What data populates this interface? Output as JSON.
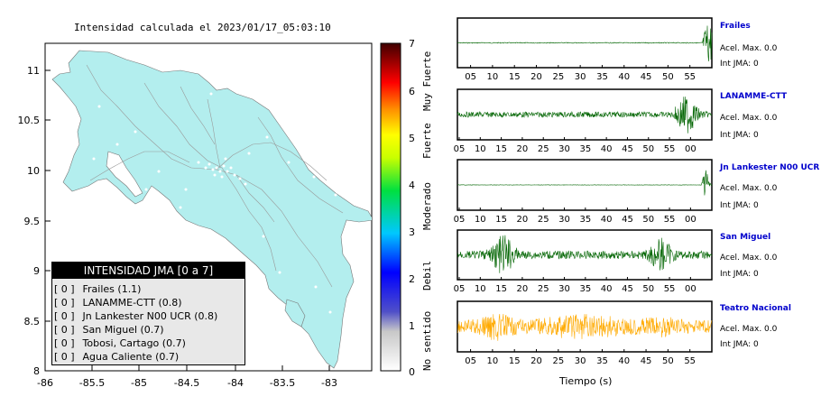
{
  "map": {
    "title": "Intensidad calculada el 2023/01/17_05:03:10",
    "x_ticks": [
      "-86",
      "-85.5",
      "-85",
      "-84.5",
      "-84",
      "-83.5",
      "-83"
    ],
    "y_ticks": [
      "11",
      "10.5",
      "10",
      "9.5",
      "9",
      "8.5",
      "8"
    ],
    "land_color": "#b3eeee",
    "colorbar": {
      "ticks": [
        "0",
        "1",
        "2",
        "3",
        "4",
        "5",
        "6",
        "7"
      ],
      "labels": [
        "No sentido",
        "Debil",
        "Moderado",
        "Fuerte",
        "Muy Fuerte"
      ]
    },
    "legend": {
      "title": "INTENSIDAD JMA [0 a 7]",
      "items": [
        {
          "bracket": "[ 0 ]",
          "name": "Frailes (1.1)"
        },
        {
          "bracket": "[ 0 ]",
          "name": "LANAMME-CTT (0.8)"
        },
        {
          "bracket": "[ 0 ]",
          "name": "Jn Lankester N00 UCR (0.8)"
        },
        {
          "bracket": "[ 0 ]",
          "name": "San Miguel (0.7)"
        },
        {
          "bracket": "[ 0 ]",
          "name": "Tobosi, Cartago (0.7)"
        },
        {
          "bracket": "[ 0 ]",
          "name": "Agua Caliente (0.7)"
        }
      ]
    }
  },
  "chart_data": {
    "type": "line",
    "x_label": "Tiempo (s)",
    "stations": [
      {
        "name": "Frailes",
        "acel": "Acel. Max. 0.0",
        "jma": "Int JMA: 0",
        "ticks": [
          "05",
          "10",
          "15",
          "20",
          "25",
          "30",
          "35",
          "40",
          "45",
          "50",
          "55"
        ],
        "color": "#006400"
      },
      {
        "name": "LANAMME-CTT",
        "acel": "Acel. Max. 0.0",
        "jma": "Int JMA: 0",
        "ticks": [
          "05",
          "10",
          "15",
          "20",
          "25",
          "30",
          "35",
          "40",
          "45",
          "50",
          "55",
          "00"
        ],
        "color": "#006400"
      },
      {
        "name": "Jn Lankester N00 UCR",
        "acel": "Acel. Max. 0.0",
        "jma": "Int JMA: 0",
        "ticks": [
          "05",
          "10",
          "15",
          "20",
          "25",
          "30",
          "35",
          "40",
          "45",
          "50",
          "55",
          "00"
        ],
        "color": "#006400"
      },
      {
        "name": "San Miguel",
        "acel": "Acel. Max. 0.0",
        "jma": "Int JMA: 0",
        "ticks": [
          "05",
          "10",
          "15",
          "20",
          "25",
          "30",
          "35",
          "40",
          "45",
          "50",
          "55",
          "00"
        ],
        "color": "#006400"
      },
      {
        "name": "Teatro Nacional",
        "acel": "Acel. Max. 0.0",
        "jma": "Int JMA: 0",
        "ticks": [
          "05",
          "10",
          "15",
          "20",
          "25",
          "30",
          "35",
          "40",
          "45",
          "50",
          "55"
        ],
        "color": "#ffaa00"
      }
    ]
  }
}
